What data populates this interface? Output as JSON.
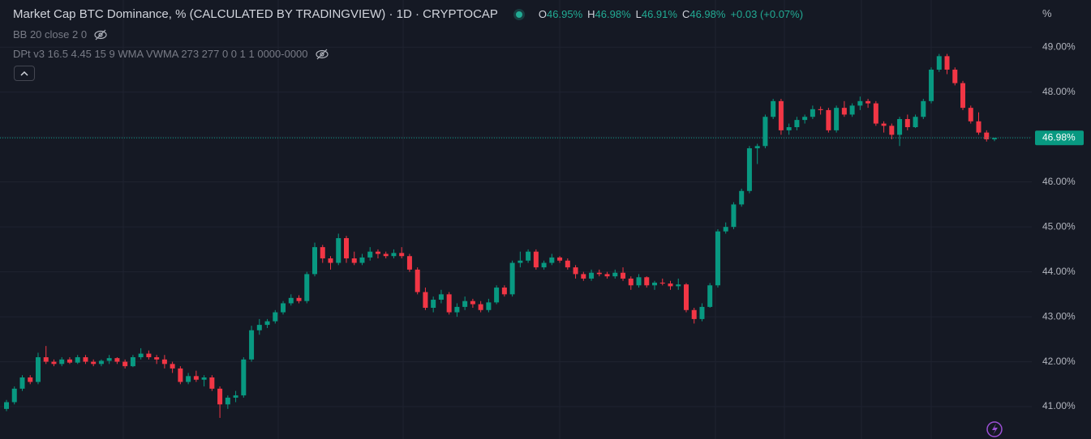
{
  "chart_data": {
    "type": "candlestick",
    "title": "Market Cap BTC Dominance, % (CALCULATED BY TRADINGVIEW) · 1D · CRYPTOCAP",
    "ohlc_header": [
      {
        "key": "O",
        "text": "46.95%"
      },
      {
        "key": "H",
        "text": "46.98%"
      },
      {
        "key": "L",
        "text": "46.91%"
      },
      {
        "key": "C",
        "text": "46.98%"
      }
    ],
    "change": "+0.03 (+0.07%)",
    "indicators": [
      "BB 20 close 2 0",
      "DPt v3 16.5 4.45 15 9 WMA VWMA 273 277 0 0 1 1 0000-0000"
    ],
    "y_axis_unit": "%",
    "up_color": "#089981",
    "down_color": "#f23645",
    "ylim": [
      40.28,
      50.05
    ],
    "yticks": [
      {
        "value": 41,
        "label": "41.00%"
      },
      {
        "value": 42,
        "label": "42.00%"
      },
      {
        "value": 43,
        "label": "43.00%"
      },
      {
        "value": 44,
        "label": "44.00%"
      },
      {
        "value": 45,
        "label": "45.00%"
      },
      {
        "value": 46,
        "label": "46.00%"
      },
      {
        "value": 47,
        "label": "47.00%"
      },
      {
        "value": 48,
        "label": "48.00%"
      },
      {
        "value": 49,
        "label": "49.00%"
      }
    ],
    "grid": true,
    "last_price": {
      "value": 46.98,
      "label": "46.98%"
    },
    "candles": [
      [
        40.95,
        41.15,
        40.9,
        41.1
      ],
      [
        41.1,
        41.45,
        41.05,
        41.4
      ],
      [
        41.4,
        41.7,
        41.35,
        41.65
      ],
      [
        41.65,
        41.7,
        41.5,
        41.55
      ],
      [
        41.55,
        42.2,
        41.5,
        42.1
      ],
      [
        42.1,
        42.35,
        41.95,
        42.0
      ],
      [
        42.0,
        42.05,
        41.9,
        41.95
      ],
      [
        41.95,
        42.1,
        41.9,
        42.05
      ],
      [
        42.05,
        42.1,
        41.95,
        41.98
      ],
      [
        41.98,
        42.15,
        41.95,
        42.1
      ],
      [
        42.1,
        42.15,
        41.95,
        42.0
      ],
      [
        42.0,
        42.05,
        41.9,
        41.95
      ],
      [
        41.95,
        42.05,
        41.9,
        42.02
      ],
      [
        42.02,
        42.15,
        41.95,
        42.08
      ],
      [
        42.08,
        42.1,
        41.95,
        42.0
      ],
      [
        42.0,
        42.05,
        41.85,
        41.9
      ],
      [
        41.9,
        42.15,
        41.88,
        42.1
      ],
      [
        42.1,
        42.3,
        42.05,
        42.18
      ],
      [
        42.18,
        42.25,
        42.05,
        42.1
      ],
      [
        42.1,
        42.15,
        41.95,
        42.05
      ],
      [
        42.05,
        42.15,
        41.85,
        41.95
      ],
      [
        41.95,
        42.0,
        41.75,
        41.85
      ],
      [
        41.85,
        41.9,
        41.5,
        41.55
      ],
      [
        41.55,
        41.75,
        41.5,
        41.68
      ],
      [
        41.68,
        41.8,
        41.55,
        41.6
      ],
      [
        41.6,
        41.7,
        41.45,
        41.65
      ],
      [
        41.65,
        41.7,
        41.35,
        41.4
      ],
      [
        41.4,
        41.45,
        40.75,
        41.05
      ],
      [
        41.05,
        41.25,
        40.95,
        41.2
      ],
      [
        41.2,
        41.35,
        41.1,
        41.25
      ],
      [
        41.25,
        42.1,
        41.2,
        42.05
      ],
      [
        42.05,
        42.8,
        42.0,
        42.7
      ],
      [
        42.7,
        42.95,
        42.6,
        42.82
      ],
      [
        42.82,
        42.95,
        42.75,
        42.9
      ],
      [
        42.9,
        43.15,
        42.85,
        43.1
      ],
      [
        43.1,
        43.35,
        43.05,
        43.3
      ],
      [
        43.3,
        43.5,
        43.25,
        43.42
      ],
      [
        43.42,
        43.48,
        43.3,
        43.35
      ],
      [
        43.35,
        44.0,
        43.3,
        43.95
      ],
      [
        43.95,
        44.65,
        43.9,
        44.55
      ],
      [
        44.55,
        44.6,
        44.2,
        44.3
      ],
      [
        44.3,
        44.35,
        44.05,
        44.2
      ],
      [
        44.2,
        44.85,
        44.15,
        44.75
      ],
      [
        44.75,
        44.8,
        44.2,
        44.3
      ],
      [
        44.3,
        44.45,
        44.15,
        44.2
      ],
      [
        44.2,
        44.4,
        44.15,
        44.32
      ],
      [
        44.32,
        44.55,
        44.25,
        44.45
      ],
      [
        44.45,
        44.5,
        44.3,
        44.4
      ],
      [
        44.4,
        44.45,
        44.3,
        44.35
      ],
      [
        44.35,
        44.5,
        44.3,
        44.42
      ],
      [
        44.42,
        44.55,
        44.3,
        44.35
      ],
      [
        44.35,
        44.4,
        44.0,
        44.05
      ],
      [
        44.05,
        44.1,
        43.5,
        43.55
      ],
      [
        43.55,
        43.65,
        43.15,
        43.2
      ],
      [
        43.2,
        43.45,
        43.1,
        43.38
      ],
      [
        43.38,
        43.6,
        43.3,
        43.5
      ],
      [
        43.5,
        43.55,
        43.05,
        43.1
      ],
      [
        43.1,
        43.3,
        43.0,
        43.22
      ],
      [
        43.22,
        43.45,
        43.15,
        43.35
      ],
      [
        43.35,
        43.4,
        43.2,
        43.28
      ],
      [
        43.28,
        43.35,
        43.1,
        43.15
      ],
      [
        43.15,
        43.4,
        43.1,
        43.32
      ],
      [
        43.32,
        43.7,
        43.28,
        43.65
      ],
      [
        43.65,
        43.7,
        43.45,
        43.5
      ],
      [
        43.5,
        44.25,
        43.45,
        44.2
      ],
      [
        44.2,
        44.45,
        44.1,
        44.25
      ],
      [
        44.25,
        44.5,
        44.2,
        44.45
      ],
      [
        44.45,
        44.5,
        44.05,
        44.1
      ],
      [
        44.1,
        44.25,
        44.05,
        44.2
      ],
      [
        44.2,
        44.4,
        44.15,
        44.32
      ],
      [
        44.32,
        44.35,
        44.2,
        44.25
      ],
      [
        44.25,
        44.3,
        44.05,
        44.1
      ],
      [
        44.1,
        44.15,
        43.85,
        43.95
      ],
      [
        43.95,
        44.0,
        43.8,
        43.85
      ],
      [
        43.85,
        44.05,
        43.8,
        43.98
      ],
      [
        43.98,
        44.05,
        43.9,
        43.95
      ],
      [
        43.95,
        44.0,
        43.85,
        43.9
      ],
      [
        43.9,
        44.05,
        43.85,
        43.98
      ],
      [
        43.98,
        44.1,
        43.8,
        43.85
      ],
      [
        43.85,
        43.9,
        43.6,
        43.7
      ],
      [
        43.7,
        43.95,
        43.65,
        43.88
      ],
      [
        43.88,
        43.9,
        43.65,
        43.7
      ],
      [
        43.7,
        43.8,
        43.6,
        43.76
      ],
      [
        43.76,
        43.85,
        43.7,
        43.74
      ],
      [
        43.74,
        43.8,
        43.6,
        43.68
      ],
      [
        43.68,
        43.85,
        43.6,
        43.72
      ],
      [
        43.72,
        43.75,
        43.1,
        43.15
      ],
      [
        43.15,
        43.2,
        42.85,
        42.95
      ],
      [
        42.95,
        43.3,
        42.9,
        43.22
      ],
      [
        43.22,
        43.75,
        43.2,
        43.7
      ],
      [
        43.7,
        44.95,
        43.65,
        44.9
      ],
      [
        44.9,
        45.1,
        44.85,
        45.0
      ],
      [
        45.0,
        45.55,
        44.95,
        45.5
      ],
      [
        45.5,
        45.85,
        45.45,
        45.8
      ],
      [
        45.8,
        46.8,
        45.75,
        46.75
      ],
      [
        46.75,
        46.85,
        46.4,
        46.8
      ],
      [
        46.8,
        47.5,
        46.75,
        47.45
      ],
      [
        47.45,
        47.85,
        47.4,
        47.8
      ],
      [
        47.8,
        47.85,
        47.05,
        47.15
      ],
      [
        47.15,
        47.3,
        47.05,
        47.22
      ],
      [
        47.22,
        47.45,
        47.15,
        47.38
      ],
      [
        47.38,
        47.5,
        47.3,
        47.45
      ],
      [
        47.45,
        47.7,
        47.4,
        47.62
      ],
      [
        47.62,
        47.68,
        47.5,
        47.6
      ],
      [
        47.6,
        47.65,
        47.1,
        47.15
      ],
      [
        47.15,
        47.7,
        47.1,
        47.65
      ],
      [
        47.65,
        47.8,
        47.45,
        47.5
      ],
      [
        47.5,
        47.75,
        47.45,
        47.7
      ],
      [
        47.7,
        47.9,
        47.6,
        47.8
      ],
      [
        47.8,
        47.85,
        47.65,
        47.75
      ],
      [
        47.75,
        47.8,
        47.25,
        47.3
      ],
      [
        47.3,
        47.35,
        47.1,
        47.25
      ],
      [
        47.25,
        47.3,
        46.95,
        47.05
      ],
      [
        47.05,
        47.45,
        46.8,
        47.4
      ],
      [
        47.4,
        47.5,
        47.15,
        47.22
      ],
      [
        47.22,
        47.5,
        47.2,
        47.45
      ],
      [
        47.45,
        47.85,
        47.4,
        47.8
      ],
      [
        47.8,
        48.55,
        47.75,
        48.5
      ],
      [
        48.5,
        48.85,
        48.45,
        48.8
      ],
      [
        48.8,
        48.85,
        48.4,
        48.5
      ],
      [
        48.5,
        48.55,
        48.15,
        48.2
      ],
      [
        48.2,
        48.25,
        47.6,
        47.65
      ],
      [
        47.65,
        47.7,
        47.3,
        47.35
      ],
      [
        47.35,
        47.55,
        47.05,
        47.1
      ],
      [
        47.1,
        47.15,
        46.9,
        46.95
      ],
      [
        46.95,
        46.98,
        46.91,
        46.98
      ]
    ]
  }
}
